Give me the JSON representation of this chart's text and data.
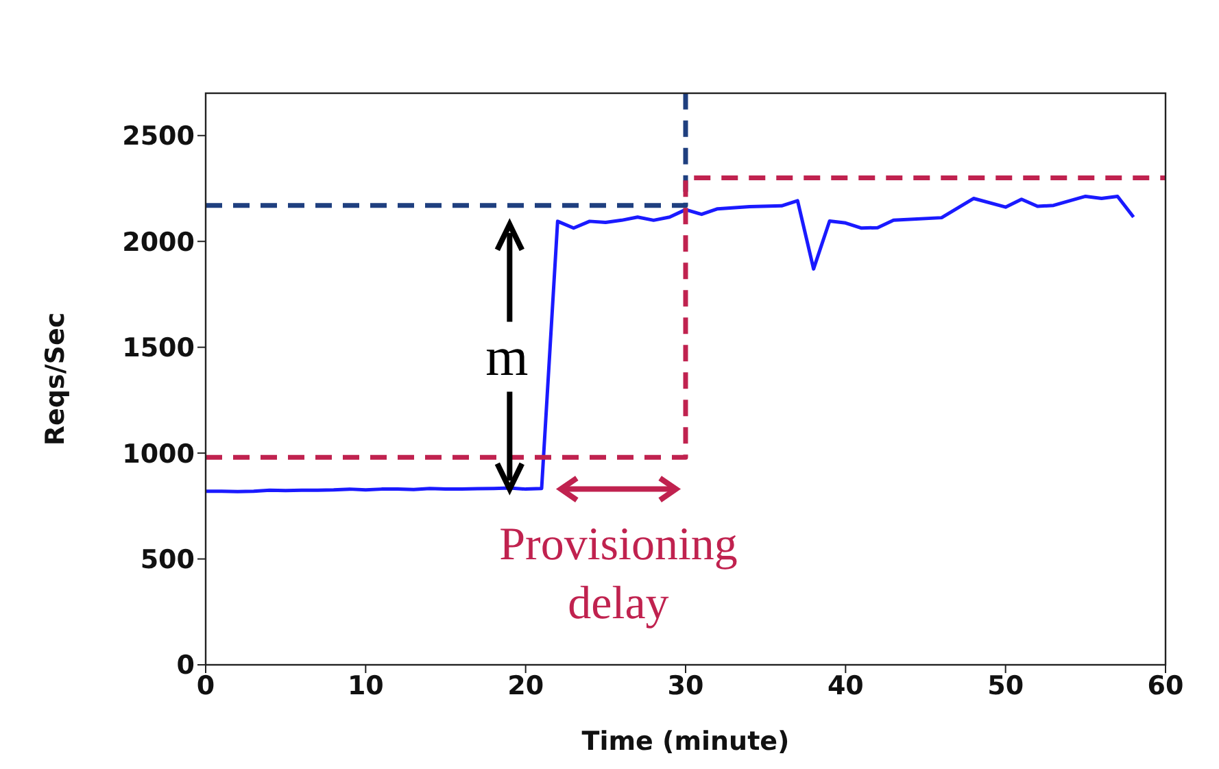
{
  "chart_data": {
    "type": "line",
    "xlabel": "Time (minute)",
    "ylabel": "Reqs/Sec",
    "xlim": [
      0,
      60
    ],
    "xticks": [
      0,
      10,
      20,
      30,
      40,
      50,
      60
    ],
    "ylim": [
      0,
      2700
    ],
    "yticks": [
      0,
      500,
      1000,
      1500,
      2000,
      2500
    ],
    "marker": "none",
    "series": [
      {
        "color": "#1a1aff",
        "line_style": "solid",
        "x": [
          0,
          1,
          2,
          3,
          4,
          5,
          6,
          7,
          8,
          9,
          10,
          11,
          12,
          13,
          14,
          15,
          16,
          17,
          18,
          19,
          20,
          21,
          22,
          23,
          24,
          25,
          26,
          27,
          28,
          29,
          30,
          31,
          32,
          34,
          36,
          37,
          38,
          39,
          40,
          41,
          42,
          43,
          46,
          48,
          50,
          51,
          52,
          53,
          55,
          56,
          57,
          58
        ],
        "values": [
          820,
          820,
          818,
          820,
          825,
          823,
          825,
          825,
          826,
          830,
          826,
          830,
          830,
          828,
          833,
          830,
          830,
          832,
          833,
          835,
          830,
          833,
          2095,
          2063,
          2095,
          2090,
          2100,
          2115,
          2100,
          2115,
          2150,
          2128,
          2154,
          2164,
          2168,
          2192,
          1870,
          2096,
          2087,
          2063,
          2065,
          2100,
          2112,
          2203,
          2162,
          2199,
          2166,
          2170,
          2213,
          2203,
          2213,
          2115
        ]
      },
      {
        "type": "step",
        "color": "#1f3f7f",
        "line_style": "dashed",
        "x": [
          0,
          30
        ],
        "values": [
          2170,
          2700
        ]
      },
      {
        "type": "step",
        "color": "#c0224f",
        "line_style": "dashed",
        "x": [
          0,
          30,
          60
        ],
        "values": [
          980,
          2300,
          2300
        ]
      }
    ],
    "annotations": [
      "m",
      "Provisioning delay"
    ]
  }
}
